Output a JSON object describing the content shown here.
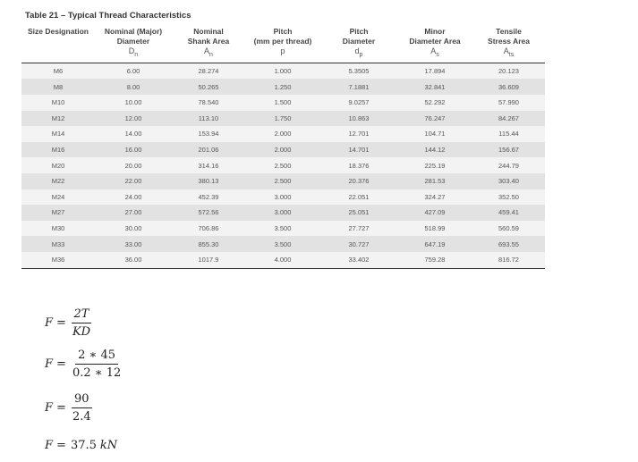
{
  "caption": "Table 21 – Typical Thread Characteristics",
  "headers": {
    "size": "Size Designation",
    "nominal_line1": "Nominal (Major)",
    "nominal_line2": "Diameter",
    "nominal_sym": "D",
    "nominal_sub": "n",
    "shank_line1": "Nominal",
    "shank_line2": "Shank Area",
    "shank_sym": "A",
    "shank_sub": "n",
    "pitch_line1": "Pitch",
    "pitch_line2": "(mm per thread)",
    "pitch_sym": "p",
    "pd_line1": "Pitch",
    "pd_line2": "Diameter",
    "pd_sym": "d",
    "pd_sub": "p",
    "minor_line1": "Minor",
    "minor_line2": "Diameter Area",
    "minor_sym": "A",
    "minor_sub": "s",
    "tensile_line1": "Tensile",
    "tensile_line2": "Stress Area",
    "tensile_sym": "A",
    "tensile_sub": "ts"
  },
  "rows": [
    [
      "M6",
      "6.00",
      "28.274",
      "1.000",
      "5.3505",
      "17.894",
      "20.123"
    ],
    [
      "M8",
      "8.00",
      "50.265",
      "1.250",
      "7.1881",
      "32.841",
      "36.609"
    ],
    [
      "M10",
      "10.00",
      "78.540",
      "1.500",
      "9.0257",
      "52.292",
      "57.990"
    ],
    [
      "M12",
      "12.00",
      "113.10",
      "1.750",
      "10.863",
      "76.247",
      "84.267"
    ],
    [
      "M14",
      "14.00",
      "153.94",
      "2.000",
      "12.701",
      "104.71",
      "115.44"
    ],
    [
      "M16",
      "16.00",
      "201.06",
      "2.000",
      "14.701",
      "144.12",
      "156.67"
    ],
    [
      "M20",
      "20.00",
      "314.16",
      "2.500",
      "18.376",
      "225.19",
      "244.79"
    ],
    [
      "M22",
      "22.00",
      "380.13",
      "2.500",
      "20.376",
      "281.53",
      "303.40"
    ],
    [
      "M24",
      "24.00",
      "452.39",
      "3.000",
      "22.051",
      "324.27",
      "352.50"
    ],
    [
      "M27",
      "27.00",
      "572.56",
      "3.000",
      "25.051",
      "427.09",
      "459.41"
    ],
    [
      "M30",
      "30.00",
      "706.86",
      "3.500",
      "27.727",
      "518.99",
      "560.59"
    ],
    [
      "M33",
      "33.00",
      "855.30",
      "3.500",
      "30.727",
      "647.19",
      "693.55"
    ],
    [
      "M36",
      "36.00",
      "1017.9",
      "4.000",
      "33.402",
      "759.28",
      "816.72"
    ]
  ],
  "equations": {
    "lhs": "F",
    "eq1_num": "2T",
    "eq1_den": "KD",
    "eq2_num": "2 ∗ 45",
    "eq2_den": "0.2 ∗ 12",
    "eq3_num": "90",
    "eq3_den": "2.4",
    "eq4_value": "37.5",
    "eq4_unit": "kN"
  }
}
